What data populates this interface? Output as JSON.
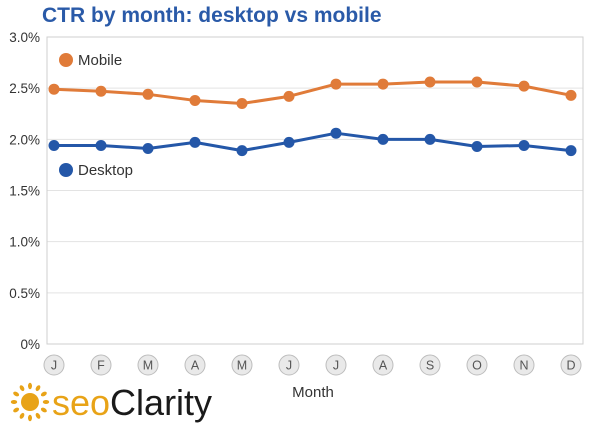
{
  "chart_data": {
    "type": "line",
    "title": "CTR by month: desktop vs mobile",
    "xlabel": "Month",
    "ylabel": "",
    "categories": [
      "J",
      "F",
      "M",
      "A",
      "M",
      "J",
      "J",
      "A",
      "S",
      "O",
      "N",
      "D"
    ],
    "ylim": [
      0,
      3.0
    ],
    "yticks": [
      {
        "value": 0,
        "label": "0%"
      },
      {
        "value": 0.5,
        "label": "0.5%"
      },
      {
        "value": 1.0,
        "label": "1.0%"
      },
      {
        "value": 1.5,
        "label": "1.5%"
      },
      {
        "value": 2.0,
        "label": "2.0%"
      },
      {
        "value": 2.5,
        "label": "2.5%"
      },
      {
        "value": 3.0,
        "label": "3.0%"
      }
    ],
    "grid": true,
    "legend_position": "inline-left",
    "series": [
      {
        "name": "Mobile",
        "color": "#e07b39",
        "values": [
          2.49,
          2.47,
          2.44,
          2.38,
          2.35,
          2.42,
          2.54,
          2.54,
          2.56,
          2.56,
          2.52,
          2.43
        ]
      },
      {
        "name": "Desktop",
        "color": "#2457a8",
        "values": [
          1.94,
          1.94,
          1.91,
          1.97,
          1.89,
          1.97,
          2.06,
          2.0,
          2.0,
          1.93,
          1.94,
          1.89
        ]
      }
    ]
  },
  "logo": {
    "prefix": "seo",
    "suffix": "Clarity",
    "prefix_color": "#e8a317",
    "suffix_color": "#1a1a1a"
  }
}
